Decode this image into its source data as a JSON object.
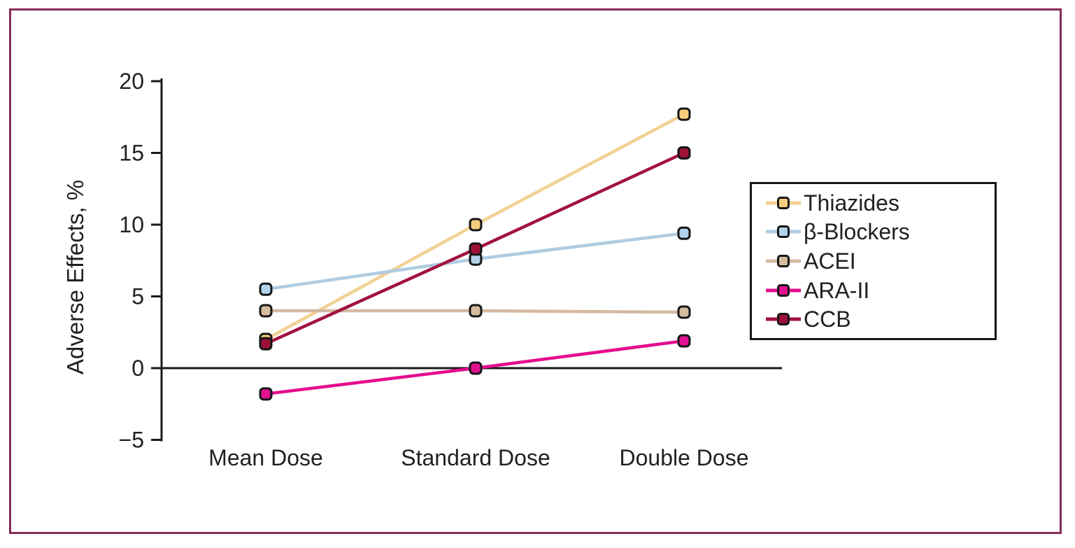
{
  "chart_data": {
    "type": "line",
    "title": "",
    "categories": [
      "Mean Dose",
      "Standard Dose",
      "Double Dose"
    ],
    "series": [
      {
        "name": "Thiazides",
        "values": [
          2.0,
          10.0,
          17.7
        ],
        "line_color": "#F1D193",
        "marker_color": "#F6CD7C"
      },
      {
        "name": "β-Blockers",
        "values": [
          5.5,
          7.6,
          9.4
        ],
        "line_color": "#AECBE1",
        "marker_color": "#B2D2EA"
      },
      {
        "name": "ACEI",
        "values": [
          4.0,
          4.0,
          3.9
        ],
        "line_color": "#D4BAA1",
        "marker_color": "#D6BC9F"
      },
      {
        "name": "ARA-II",
        "values": [
          -1.8,
          0.0,
          1.9
        ],
        "line_color": "#E50C8E",
        "marker_color": "#E01090"
      },
      {
        "name": "CCB",
        "values": [
          1.7,
          8.3,
          15.0
        ],
        "line_color": "#A11240",
        "marker_color": "#9D1139"
      }
    ],
    "xlabel": "",
    "ylabel": "Adverse Effects, %",
    "ylim": [
      -5,
      20
    ],
    "yticks": [
      20,
      15,
      10,
      5,
      0,
      -5
    ],
    "grid": false,
    "legend_position": "right"
  },
  "colors": {
    "frame_border": "#862D59",
    "axis": "#1A1A1A",
    "text": "#231F20",
    "legend_border": "#161616",
    "background": "#FFFFFF"
  }
}
